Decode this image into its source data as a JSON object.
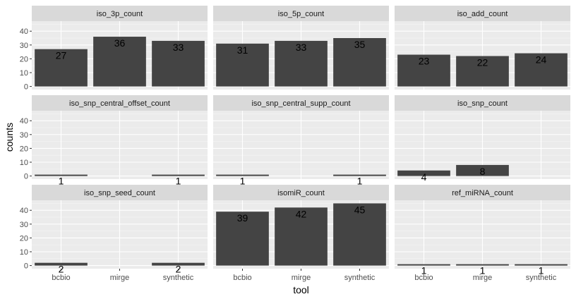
{
  "chart_data": {
    "type": "bar",
    "xlabel": "tool",
    "ylabel": "counts",
    "ylim": [
      0,
      45
    ],
    "yticks": [
      0,
      10,
      20,
      30,
      40
    ],
    "categories": [
      "bcbio",
      "mirge",
      "synthetic"
    ],
    "facets": [
      {
        "name": "iso_3p_count",
        "values": [
          27,
          36,
          33
        ]
      },
      {
        "name": "iso_5p_count",
        "values": [
          31,
          33,
          35
        ]
      },
      {
        "name": "iso_add_count",
        "values": [
          23,
          22,
          24
        ]
      },
      {
        "name": "iso_snp_central_offset_count",
        "values": [
          1,
          null,
          1
        ]
      },
      {
        "name": "iso_snp_central_supp_count",
        "values": [
          1,
          null,
          1
        ]
      },
      {
        "name": "iso_snp_count",
        "values": [
          4,
          8,
          null
        ]
      },
      {
        "name": "iso_snp_seed_count",
        "values": [
          2,
          null,
          2
        ]
      },
      {
        "name": "isomiR_count",
        "values": [
          39,
          42,
          45
        ]
      },
      {
        "name": "ref_miRNA_count",
        "values": [
          1,
          1,
          1
        ]
      }
    ],
    "colors": {
      "bar": "#444444",
      "panel": "#ebebeb",
      "strip": "#d9d9d9",
      "grid_major": "#ffffff"
    }
  }
}
